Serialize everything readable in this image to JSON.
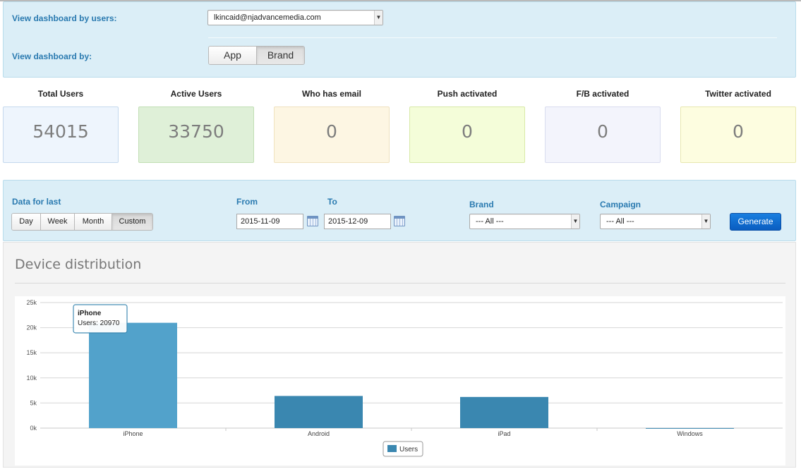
{
  "filters": {
    "users_label": "View dashboard by users:",
    "users_value": "lkincaid@njadvancemedia.com",
    "view_by_label": "View dashboard by:",
    "view_by_options": [
      "App",
      "Brand"
    ],
    "view_by_selected": "Brand"
  },
  "stats": [
    {
      "title": "Total Users",
      "value": "54015",
      "bg": "#eef5fd",
      "border": "#c5d9ee"
    },
    {
      "title": "Active Users",
      "value": "33750",
      "bg": "#dff0d8",
      "border": "#c2dfb5"
    },
    {
      "title": "Who has email",
      "value": "0",
      "bg": "#fdf6e3",
      "border": "#efe2bf"
    },
    {
      "title": "Push activated",
      "value": "0",
      "bg": "#f4fdd9",
      "border": "#d8e9a8"
    },
    {
      "title": "F/B activated",
      "value": "0",
      "bg": "#f3f4fc",
      "border": "#d9dcef"
    },
    {
      "title": "Twitter activated",
      "value": "0",
      "bg": "#fdfde0",
      "border": "#e8e8b0"
    }
  ],
  "data_filter": {
    "range_label": "Data for last",
    "range_options": [
      "Day",
      "Week",
      "Month",
      "Custom"
    ],
    "range_selected": "Custom",
    "from_label": "From",
    "from_value": "2015-11-09",
    "to_label": "To",
    "to_value": "2015-12-09",
    "brand_label": "Brand",
    "brand_value": "--- All ---",
    "campaign_label": "Campaign",
    "campaign_value": "--- All ---",
    "generate_label": "Generate"
  },
  "chart_panel": {
    "title": "Device distribution"
  },
  "chart_data": {
    "type": "bar",
    "categories": [
      "iPhone",
      "Android",
      "iPad",
      "Windows"
    ],
    "series": [
      {
        "name": "Users",
        "values": [
          20970,
          6400,
          6200,
          10
        ],
        "color": "#3a87b0"
      }
    ],
    "y_ticks": [
      "0k",
      "5k",
      "10k",
      "15k",
      "20k",
      "25k"
    ],
    "ylim": [
      0,
      25000
    ],
    "grid": true,
    "legend": "bottom-center",
    "tooltip": {
      "category": "iPhone",
      "text": "Users: 20970"
    },
    "highlight_color": "#52a2cb"
  }
}
